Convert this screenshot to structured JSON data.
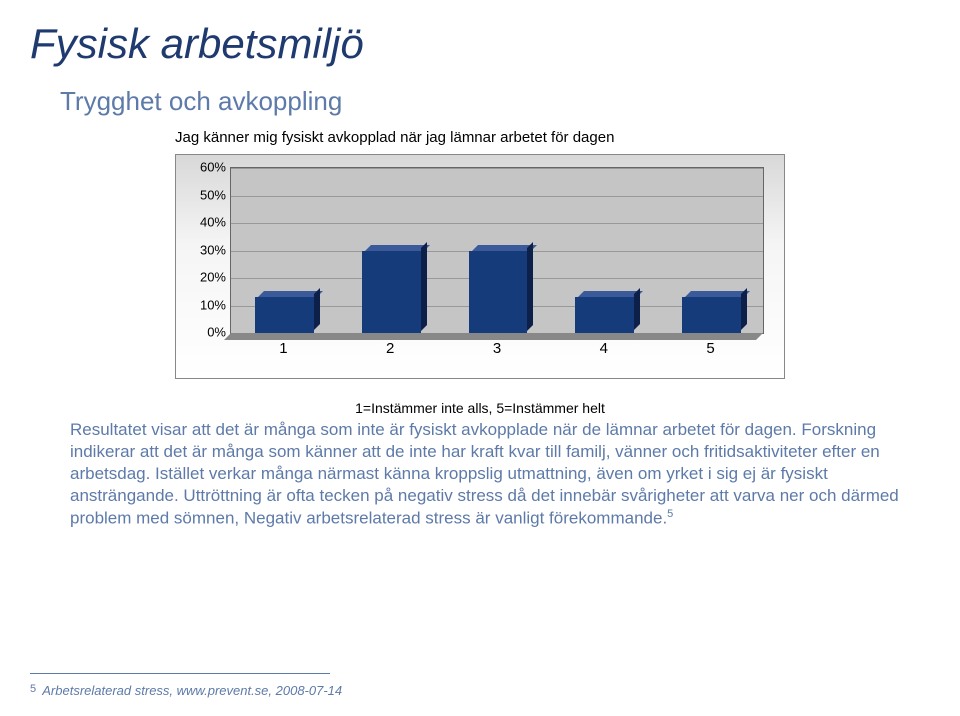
{
  "title": "Fysisk arbetsmiljö",
  "subtitle": "Trygghet och avkoppling",
  "chart": {
    "type": "bar",
    "title": "Jag känner mig fysiskt avkopplad när jag lämnar arbetet för dagen",
    "categories": [
      "1",
      "2",
      "3",
      "4",
      "5"
    ],
    "values": [
      13,
      30,
      30,
      13,
      13
    ],
    "ymax": 60,
    "ytick_step": 10,
    "y_labels": [
      "0%",
      "10%",
      "20%",
      "30%",
      "40%",
      "50%",
      "60%"
    ],
    "bar_color": "#163b7b",
    "bar_top_color": "#3a5a9a",
    "bar_side_color": "#0c204a",
    "plot_bg": "#c5c5c5",
    "grid_color": "#999999",
    "x_caption": "1=Instämmer inte alls, 5=Instämmer helt"
  },
  "body": "Resultatet visar att det är många som inte är fysiskt avkopplade när de lämnar arbetet för dagen. Forskning indikerar att det är många som känner att de inte har kraft kvar till familj, vänner och fritidsaktiviteter efter en arbetsdag. Istället verkar många närmast känna kroppslig utmattning, även om yrket i sig ej är fysiskt ansträngande. Uttröttning är ofta tecken på negativ stress då det innebär svårigheter att varva ner och därmed problem med sömnen, Negativ arbetsrelaterad stress är vanligt förekommande.",
  "body_sup": "5",
  "footnote_marker": "5",
  "footnote": "Arbetsrelaterad stress, www.prevent.se, 2008-07-14"
}
